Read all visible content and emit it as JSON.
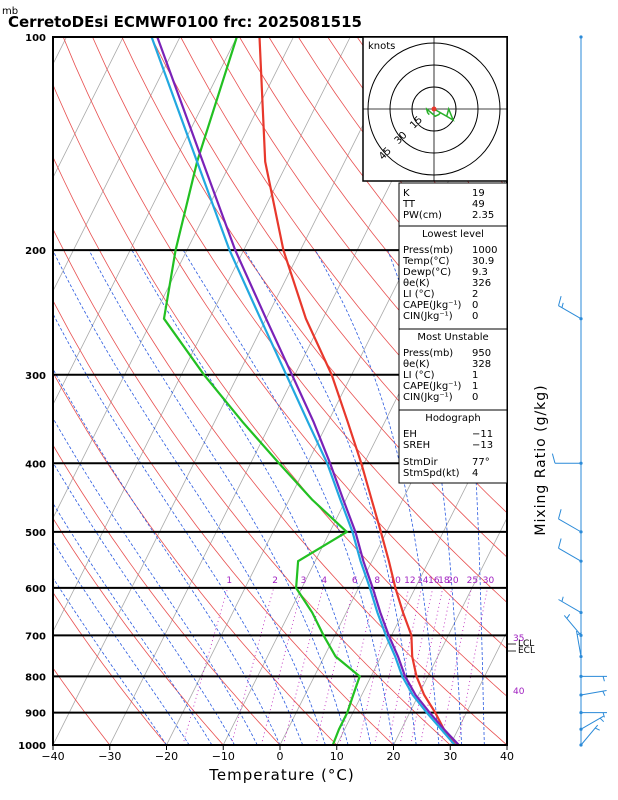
{
  "header": {
    "unit_label": "mb",
    "title": "CerretoDEsi ECMWF0100  frc: 2025081515"
  },
  "chart_data": {
    "type": "line",
    "xlabel": "Temperature (°C)",
    "ylabel": "Mixing Ratio (g/kg)",
    "xlim": [
      -40,
      40
    ],
    "ylim": [
      1000,
      100
    ],
    "x_ticks": [
      -40,
      -30,
      -20,
      -10,
      0,
      10,
      20,
      30,
      40
    ],
    "pressure_levels": [
      100,
      200,
      300,
      400,
      500,
      600,
      700,
      800,
      900,
      1000
    ],
    "mixing_ratio_labels": [
      "1",
      "2",
      "3",
      "4",
      "6",
      "8",
      "10",
      "12",
      "14",
      "16",
      "18",
      "20",
      "25",
      "30"
    ],
    "theta_e_labels": [
      "35",
      "40"
    ],
    "level_markers": [
      "LCL",
      "ECL"
    ],
    "series": [
      {
        "key": "temperature",
        "color": "#e8382c",
        "points": [
          [
            1000,
            30.9
          ],
          [
            950,
            27.5
          ],
          [
            900,
            24.5
          ],
          [
            850,
            21.0
          ],
          [
            800,
            18.0
          ],
          [
            750,
            15.5
          ],
          [
            700,
            13.5
          ],
          [
            650,
            10.0
          ],
          [
            600,
            6.5
          ],
          [
            550,
            3.0
          ],
          [
            500,
            -1.0
          ],
          [
            450,
            -5.5
          ],
          [
            400,
            -10.5
          ],
          [
            350,
            -16.5
          ],
          [
            300,
            -23.5
          ],
          [
            250,
            -33.0
          ],
          [
            200,
            -43.0
          ],
          [
            150,
            -54.0
          ],
          [
            100,
            -66.0
          ]
        ]
      },
      {
        "key": "dewpoint",
        "color": "#22c022",
        "points": [
          [
            1000,
            9.3
          ],
          [
            950,
            9.0
          ],
          [
            900,
            9.0
          ],
          [
            850,
            8.5
          ],
          [
            800,
            8.0
          ],
          [
            750,
            2.0
          ],
          [
            700,
            -2.0
          ],
          [
            650,
            -6.0
          ],
          [
            600,
            -11.0
          ],
          [
            550,
            -13.0
          ],
          [
            500,
            -7.0
          ],
          [
            450,
            -16.0
          ],
          [
            400,
            -25.0
          ],
          [
            350,
            -35.0
          ],
          [
            300,
            -46.0
          ],
          [
            250,
            -58.0
          ],
          [
            200,
            -62.0
          ],
          [
            150,
            -66.0
          ],
          [
            100,
            -70.0
          ]
        ]
      },
      {
        "key": "parcel-virtual",
        "color": "#7a22b8",
        "points": [
          [
            1000,
            31.5
          ],
          [
            950,
            27.5
          ],
          [
            900,
            23.5
          ],
          [
            850,
            19.5
          ],
          [
            800,
            16.0
          ],
          [
            750,
            13.0
          ],
          [
            700,
            9.5
          ],
          [
            650,
            6.0
          ],
          [
            600,
            2.5
          ],
          [
            550,
            -1.5
          ],
          [
            500,
            -5.5
          ],
          [
            450,
            -10.5
          ],
          [
            400,
            -16.0
          ],
          [
            350,
            -22.5
          ],
          [
            300,
            -30.5
          ],
          [
            250,
            -40.0
          ],
          [
            200,
            -51.5
          ],
          [
            150,
            -65.0
          ],
          [
            100,
            -84.0
          ]
        ]
      },
      {
        "key": "parcel",
        "color": "#22a8e0",
        "points": [
          [
            1000,
            30.8
          ],
          [
            950,
            27.0
          ],
          [
            900,
            23.0
          ],
          [
            850,
            19.0
          ],
          [
            800,
            15.5
          ],
          [
            750,
            12.5
          ],
          [
            700,
            9.0
          ],
          [
            650,
            5.5
          ],
          [
            600,
            2.0
          ],
          [
            550,
            -2.0
          ],
          [
            500,
            -6.0
          ],
          [
            450,
            -11.0
          ],
          [
            400,
            -16.5
          ],
          [
            350,
            -23.5
          ],
          [
            300,
            -31.5
          ],
          [
            250,
            -41.0
          ],
          [
            200,
            -52.5
          ],
          [
            150,
            -66.0
          ],
          [
            100,
            -85.0
          ]
        ]
      }
    ],
    "wind_barbs": [
      {
        "p": 100,
        "dir": 270,
        "spd": 0
      },
      {
        "p": 250,
        "dir": 300,
        "spd": 15
      },
      {
        "p": 400,
        "dir": 270,
        "spd": 10
      },
      {
        "p": 500,
        "dir": 300,
        "spd": 10
      },
      {
        "p": 550,
        "dir": 300,
        "spd": 10
      },
      {
        "p": 650,
        "dir": 300,
        "spd": 5
      },
      {
        "p": 700,
        "dir": 320,
        "spd": 5
      },
      {
        "p": 750,
        "dir": 350,
        "spd": 5
      },
      {
        "p": 800,
        "dir": 90,
        "spd": 5
      },
      {
        "p": 850,
        "dir": 80,
        "spd": 5
      },
      {
        "p": 900,
        "dir": 90,
        "spd": 5
      },
      {
        "p": 950,
        "dir": 60,
        "spd": 5
      },
      {
        "p": 1000,
        "dir": 40,
        "spd": 5
      }
    ]
  },
  "hodograph": {
    "title": "knots",
    "ring_labels": [
      "15",
      "30",
      "45"
    ]
  },
  "indices": {
    "basic": [
      {
        "label": "K",
        "value": "19"
      },
      {
        "label": "TT",
        "value": "49"
      },
      {
        "label": "PW(cm)",
        "value": "2.35"
      }
    ],
    "lowest_level": {
      "title": "Lowest level",
      "rows": [
        {
          "label": "Press(mb)",
          "value": "1000"
        },
        {
          "label": "Temp(°C)",
          "value": "30.9"
        },
        {
          "label": "Dewp(°C)",
          "value": "9.3"
        },
        {
          "label": "θe(K)",
          "value": "326"
        },
        {
          "label": "LI  (°C)",
          "value": "2"
        },
        {
          "label": "CAPE(Jkg⁻¹)",
          "value": "0"
        },
        {
          "label": "CIN(Jkg⁻¹)",
          "value": "0"
        }
      ]
    },
    "most_unstable": {
      "title": "Most Unstable",
      "rows": [
        {
          "label": "Press(mb)",
          "value": "950"
        },
        {
          "label": "θe(K)",
          "value": "328"
        },
        {
          "label": "LI  (°C)",
          "value": "1"
        },
        {
          "label": "CAPE(Jkg⁻¹)",
          "value": "1"
        },
        {
          "label": "CIN(Jkg⁻¹)",
          "value": "0"
        }
      ]
    },
    "hodograph": {
      "title": "Hodograph",
      "rows": [
        {
          "label": "EH",
          "value": "−11"
        },
        {
          "label": "SREH",
          "value": "−13"
        }
      ],
      "storm": [
        {
          "label": "StmDir",
          "value": "77°"
        },
        {
          "label": "StmSpd(kt)",
          "value": "4"
        }
      ]
    }
  }
}
